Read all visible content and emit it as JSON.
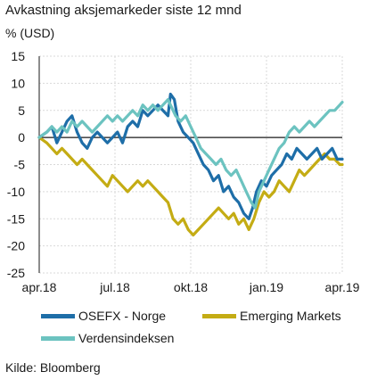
{
  "chart_data": {
    "type": "line",
    "title": "Avkastning aksjemarkeder siste 12 mnd",
    "unit_label": "% (USD)",
    "ylim": [
      -25,
      15
    ],
    "yticks": [
      15,
      10,
      5,
      0,
      -5,
      -10,
      -15,
      -20,
      -25
    ],
    "xlim": [
      0,
      12
    ],
    "xticks": [
      {
        "x": 0,
        "label": "apr.18"
      },
      {
        "x": 3,
        "label": "jul.18"
      },
      {
        "x": 6,
        "label": "okt.18"
      },
      {
        "x": 9,
        "label": "jan.19"
      },
      {
        "x": 12,
        "label": "apr.19"
      }
    ],
    "grid": true,
    "legend_position": "bottom",
    "series": [
      {
        "name": "OSEFX - Norge",
        "color": "#1e6ea8",
        "points": [
          [
            0,
            0
          ],
          [
            0.3,
            1
          ],
          [
            0.5,
            2
          ],
          [
            0.7,
            -1
          ],
          [
            0.9,
            1
          ],
          [
            1.1,
            3
          ],
          [
            1.3,
            4
          ],
          [
            1.5,
            1
          ],
          [
            1.7,
            -1
          ],
          [
            1.9,
            -2
          ],
          [
            2.1,
            0
          ],
          [
            2.3,
            1
          ],
          [
            2.5,
            0
          ],
          [
            2.7,
            -1
          ],
          [
            2.9,
            0
          ],
          [
            3.1,
            1
          ],
          [
            3.3,
            -1
          ],
          [
            3.5,
            2
          ],
          [
            3.7,
            3
          ],
          [
            3.9,
            2
          ],
          [
            4.1,
            5
          ],
          [
            4.3,
            4
          ],
          [
            4.5,
            5
          ],
          [
            4.7,
            6
          ],
          [
            4.9,
            5
          ],
          [
            5.1,
            4
          ],
          [
            5.2,
            8
          ],
          [
            5.35,
            7
          ],
          [
            5.5,
            3
          ],
          [
            5.7,
            1
          ],
          [
            5.9,
            0
          ],
          [
            6.1,
            -1
          ],
          [
            6.3,
            -3
          ],
          [
            6.5,
            -5
          ],
          [
            6.7,
            -6
          ],
          [
            6.9,
            -8
          ],
          [
            7.1,
            -7
          ],
          [
            7.3,
            -10
          ],
          [
            7.5,
            -9
          ],
          [
            7.7,
            -11
          ],
          [
            7.9,
            -12
          ],
          [
            8.1,
            -14
          ],
          [
            8.3,
            -15
          ],
          [
            8.45,
            -13
          ],
          [
            8.6,
            -10
          ],
          [
            8.8,
            -8
          ],
          [
            9.0,
            -9
          ],
          [
            9.2,
            -7
          ],
          [
            9.4,
            -6
          ],
          [
            9.6,
            -5
          ],
          [
            9.8,
            -3
          ],
          [
            10.0,
            -4
          ],
          [
            10.2,
            -2
          ],
          [
            10.4,
            -3
          ],
          [
            10.6,
            -4
          ],
          [
            10.8,
            -3
          ],
          [
            11.0,
            -2
          ],
          [
            11.2,
            -4
          ],
          [
            11.4,
            -3
          ],
          [
            11.6,
            -2
          ],
          [
            11.8,
            -4
          ],
          [
            12,
            -4
          ]
        ]
      },
      {
        "name": "Emerging Markets",
        "color": "#c4ac14",
        "points": [
          [
            0,
            0
          ],
          [
            0.3,
            -1
          ],
          [
            0.5,
            -2
          ],
          [
            0.7,
            -3
          ],
          [
            0.9,
            -2
          ],
          [
            1.1,
            -3
          ],
          [
            1.3,
            -4
          ],
          [
            1.5,
            -5
          ],
          [
            1.7,
            -4
          ],
          [
            1.9,
            -5
          ],
          [
            2.1,
            -6
          ],
          [
            2.3,
            -7
          ],
          [
            2.5,
            -8
          ],
          [
            2.7,
            -9
          ],
          [
            2.9,
            -7
          ],
          [
            3.1,
            -8
          ],
          [
            3.3,
            -9
          ],
          [
            3.5,
            -10
          ],
          [
            3.7,
            -9
          ],
          [
            3.9,
            -8
          ],
          [
            4.1,
            -9
          ],
          [
            4.3,
            -8
          ],
          [
            4.5,
            -9
          ],
          [
            4.7,
            -10
          ],
          [
            4.9,
            -11
          ],
          [
            5.1,
            -12
          ],
          [
            5.3,
            -15
          ],
          [
            5.5,
            -16
          ],
          [
            5.7,
            -15
          ],
          [
            5.9,
            -17
          ],
          [
            6.1,
            -18
          ],
          [
            6.3,
            -17
          ],
          [
            6.5,
            -16
          ],
          [
            6.7,
            -15
          ],
          [
            6.9,
            -14
          ],
          [
            7.1,
            -13
          ],
          [
            7.3,
            -14
          ],
          [
            7.5,
            -15
          ],
          [
            7.7,
            -14
          ],
          [
            7.9,
            -16
          ],
          [
            8.1,
            -15
          ],
          [
            8.3,
            -17
          ],
          [
            8.5,
            -15
          ],
          [
            8.7,
            -12
          ],
          [
            8.9,
            -10
          ],
          [
            9.1,
            -11
          ],
          [
            9.3,
            -10
          ],
          [
            9.5,
            -8
          ],
          [
            9.7,
            -9
          ],
          [
            9.9,
            -10
          ],
          [
            10.1,
            -8
          ],
          [
            10.3,
            -6
          ],
          [
            10.5,
            -7
          ],
          [
            10.7,
            -6
          ],
          [
            10.9,
            -5
          ],
          [
            11.1,
            -4
          ],
          [
            11.3,
            -3
          ],
          [
            11.5,
            -4
          ],
          [
            11.7,
            -4
          ],
          [
            11.9,
            -5
          ],
          [
            12,
            -5
          ]
        ]
      },
      {
        "name": "Verdensindeksen",
        "color": "#6cc3c0",
        "points": [
          [
            0,
            0
          ],
          [
            0.3,
            1
          ],
          [
            0.5,
            2
          ],
          [
            0.7,
            1
          ],
          [
            0.9,
            2
          ],
          [
            1.1,
            1
          ],
          [
            1.3,
            3
          ],
          [
            1.5,
            2
          ],
          [
            1.7,
            3
          ],
          [
            1.9,
            2
          ],
          [
            2.1,
            1
          ],
          [
            2.3,
            2
          ],
          [
            2.5,
            3
          ],
          [
            2.7,
            4
          ],
          [
            2.9,
            3
          ],
          [
            3.1,
            4
          ],
          [
            3.3,
            3
          ],
          [
            3.5,
            4
          ],
          [
            3.7,
            5
          ],
          [
            3.9,
            4
          ],
          [
            4.1,
            6
          ],
          [
            4.3,
            5
          ],
          [
            4.5,
            6
          ],
          [
            4.7,
            5
          ],
          [
            4.9,
            6
          ],
          [
            5.1,
            7
          ],
          [
            5.2,
            6
          ],
          [
            5.4,
            4
          ],
          [
            5.6,
            3
          ],
          [
            5.8,
            4
          ],
          [
            6.0,
            2
          ],
          [
            6.2,
            0
          ],
          [
            6.4,
            -2
          ],
          [
            6.6,
            -3
          ],
          [
            6.8,
            -4
          ],
          [
            7.0,
            -5
          ],
          [
            7.2,
            -4
          ],
          [
            7.4,
            -6
          ],
          [
            7.6,
            -7
          ],
          [
            7.8,
            -6
          ],
          [
            8.0,
            -8
          ],
          [
            8.2,
            -10
          ],
          [
            8.4,
            -12
          ],
          [
            8.55,
            -13
          ],
          [
            8.7,
            -10
          ],
          [
            8.9,
            -8
          ],
          [
            9.1,
            -6
          ],
          [
            9.3,
            -4
          ],
          [
            9.5,
            -2
          ],
          [
            9.7,
            -1
          ],
          [
            9.9,
            1
          ],
          [
            10.1,
            2
          ],
          [
            10.3,
            1
          ],
          [
            10.5,
            2
          ],
          [
            10.7,
            3
          ],
          [
            10.9,
            2
          ],
          [
            11.1,
            3
          ],
          [
            11.3,
            4
          ],
          [
            11.5,
            5
          ],
          [
            11.7,
            5
          ],
          [
            11.9,
            6
          ],
          [
            12,
            6.5
          ]
        ]
      }
    ],
    "source": "Kilde: Bloomberg"
  }
}
